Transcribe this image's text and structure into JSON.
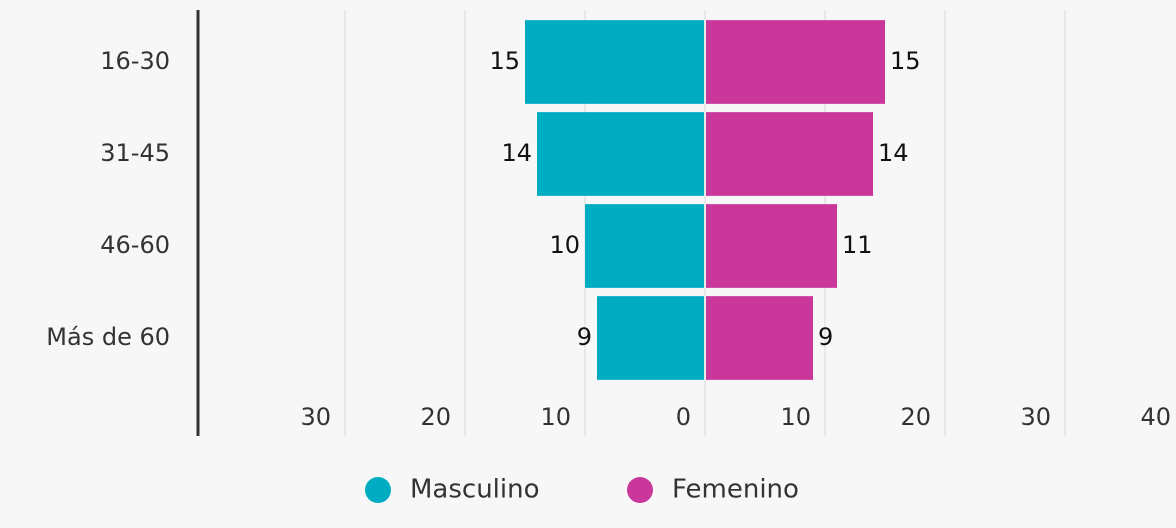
{
  "chart_data": {
    "type": "pyramid",
    "categories": [
      "16-30",
      "31-45",
      "46-60",
      "Más de 60"
    ],
    "series": [
      {
        "name": "Masculino",
        "color": "#00acc1",
        "values": [
          15,
          14,
          10,
          9
        ]
      },
      {
        "name": "Femenino",
        "color": "#c9379a",
        "values": [
          15,
          14,
          11,
          9
        ]
      }
    ],
    "xlim": [
      -42.25,
      39.25
    ],
    "xticks": [
      {
        "value": -30,
        "label": "30"
      },
      {
        "value": -20,
        "label": "20"
      },
      {
        "value": -10,
        "label": "10"
      },
      0,
      10,
      20,
      30,
      40
    ],
    "grid": true
  }
}
